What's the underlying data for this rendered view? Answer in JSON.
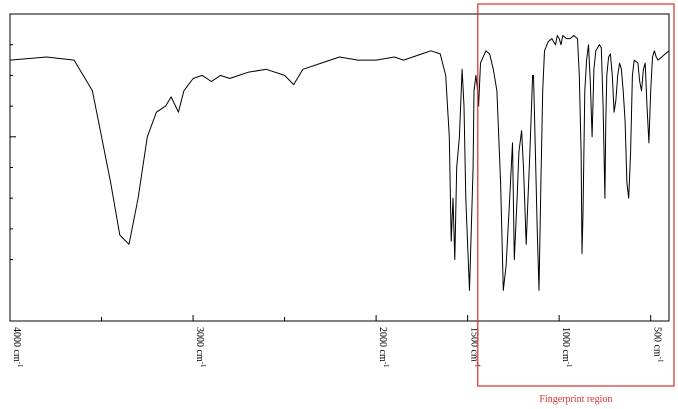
{
  "chart_data": {
    "type": "line",
    "title": "",
    "xlabel": "",
    "ylabel": "",
    "x_unit_suffix": "cm",
    "x_unit_exponent": "-1",
    "xlim": [
      4000,
      400
    ],
    "ylim": [
      0,
      100
    ],
    "x_ticks": [
      {
        "value": 4000,
        "label": "4000"
      },
      {
        "value": 3000,
        "label": "3000"
      },
      {
        "value": 2000,
        "label": "2000"
      },
      {
        "value": 1500,
        "label": "1500"
      },
      {
        "value": 1000,
        "label": "1000"
      },
      {
        "value": 500,
        "label": "500"
      }
    ],
    "x_minor_ticks": [
      3500,
      2500
    ],
    "y_minor_ticks": [
      90,
      80,
      70,
      50,
      40,
      30,
      20
    ],
    "y_major_ticks": [
      60
    ],
    "grid": false,
    "series": [
      {
        "color": "#000000",
        "points": [
          [
            4000,
            85
          ],
          [
            3800,
            86
          ],
          [
            3650,
            85
          ],
          [
            3550,
            75
          ],
          [
            3450,
            45
          ],
          [
            3400,
            28
          ],
          [
            3350,
            25
          ],
          [
            3300,
            40
          ],
          [
            3250,
            60
          ],
          [
            3200,
            68
          ],
          [
            3150,
            70
          ],
          [
            3120,
            73
          ],
          [
            3080,
            68
          ],
          [
            3050,
            75
          ],
          [
            3000,
            79
          ],
          [
            2950,
            80
          ],
          [
            2900,
            78
          ],
          [
            2850,
            80
          ],
          [
            2800,
            79
          ],
          [
            2750,
            80
          ],
          [
            2700,
            81
          ],
          [
            2600,
            82
          ],
          [
            2500,
            80
          ],
          [
            2450,
            77
          ],
          [
            2400,
            82
          ],
          [
            2300,
            84
          ],
          [
            2200,
            86
          ],
          [
            2100,
            85
          ],
          [
            2000,
            85
          ],
          [
            1900,
            86
          ],
          [
            1850,
            85
          ],
          [
            1800,
            86
          ],
          [
            1750,
            87
          ],
          [
            1700,
            88
          ],
          [
            1650,
            87
          ],
          [
            1620,
            80
          ],
          [
            1600,
            60
          ],
          [
            1590,
            26
          ],
          [
            1580,
            40
          ],
          [
            1570,
            20
          ],
          [
            1560,
            50
          ],
          [
            1545,
            60
          ],
          [
            1530,
            82
          ],
          [
            1520,
            70
          ],
          [
            1510,
            40
          ],
          [
            1500,
            25
          ],
          [
            1490,
            10
          ],
          [
            1480,
            30
          ],
          [
            1470,
            50
          ],
          [
            1465,
            75
          ],
          [
            1455,
            80
          ],
          [
            1445,
            75
          ],
          [
            1440,
            70
          ],
          [
            1430,
            84
          ],
          [
            1400,
            88
          ],
          [
            1380,
            87
          ],
          [
            1360,
            82
          ],
          [
            1340,
            75
          ],
          [
            1320,
            45
          ],
          [
            1305,
            10
          ],
          [
            1290,
            18
          ],
          [
            1270,
            40
          ],
          [
            1255,
            58
          ],
          [
            1245,
            20
          ],
          [
            1230,
            40
          ],
          [
            1220,
            55
          ],
          [
            1205,
            62
          ],
          [
            1195,
            50
          ],
          [
            1180,
            25
          ],
          [
            1170,
            40
          ],
          [
            1160,
            55
          ],
          [
            1145,
            80
          ],
          [
            1140,
            80
          ],
          [
            1130,
            55
          ],
          [
            1120,
            30
          ],
          [
            1110,
            10
          ],
          [
            1100,
            45
          ],
          [
            1090,
            75
          ],
          [
            1080,
            88
          ],
          [
            1060,
            91
          ],
          [
            1040,
            92
          ],
          [
            1020,
            90
          ],
          [
            1010,
            93
          ],
          [
            1000,
            92
          ],
          [
            990,
            90
          ],
          [
            980,
            93
          ],
          [
            960,
            92
          ],
          [
            940,
            92
          ],
          [
            920,
            93
          ],
          [
            900,
            92
          ],
          [
            890,
            80
          ],
          [
            880,
            55
          ],
          [
            875,
            22
          ],
          [
            870,
            35
          ],
          [
            860,
            75
          ],
          [
            850,
            85
          ],
          [
            840,
            90
          ],
          [
            830,
            78
          ],
          [
            820,
            60
          ],
          [
            810,
            82
          ],
          [
            800,
            88
          ],
          [
            790,
            89
          ],
          [
            780,
            90
          ],
          [
            770,
            89
          ],
          [
            760,
            70
          ],
          [
            755,
            55
          ],
          [
            750,
            40
          ],
          [
            745,
            65
          ],
          [
            740,
            80
          ],
          [
            730,
            86
          ],
          [
            720,
            87
          ],
          [
            710,
            80
          ],
          [
            700,
            68
          ],
          [
            690,
            72
          ],
          [
            680,
            80
          ],
          [
            670,
            84
          ],
          [
            660,
            82
          ],
          [
            650,
            75
          ],
          [
            640,
            65
          ],
          [
            630,
            45
          ],
          [
            620,
            40
          ],
          [
            610,
            55
          ],
          [
            600,
            80
          ],
          [
            590,
            85
          ],
          [
            570,
            84
          ],
          [
            560,
            78
          ],
          [
            550,
            75
          ],
          [
            540,
            82
          ],
          [
            530,
            84
          ],
          [
            520,
            70
          ],
          [
            510,
            58
          ],
          [
            500,
            75
          ],
          [
            490,
            86
          ],
          [
            480,
            88
          ],
          [
            470,
            86
          ],
          [
            460,
            85
          ],
          [
            440,
            86
          ],
          [
            420,
            87
          ],
          [
            400,
            88
          ]
        ]
      }
    ],
    "annotations": [
      {
        "text": "Fingerprint region",
        "x_from": 1450,
        "x_to": 400,
        "color": "#d9302c"
      }
    ]
  }
}
